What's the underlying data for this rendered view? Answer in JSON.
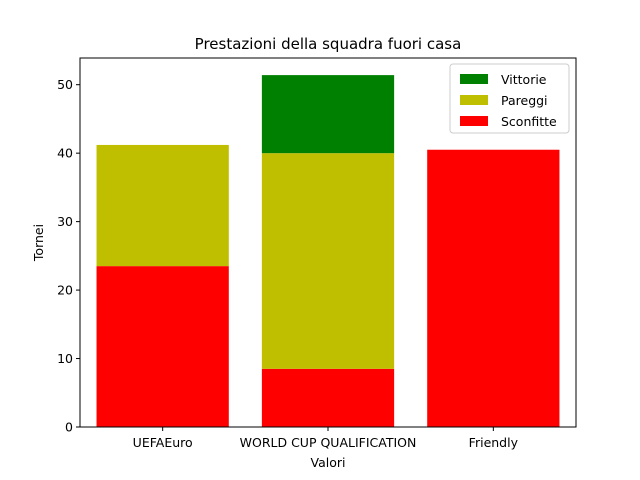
{
  "chart_data": {
    "type": "bar",
    "stacked": true,
    "title": "Prestazioni della squadra fuori casa",
    "xlabel": "Valori",
    "ylabel": "Tornei",
    "categories": [
      "UEFAEuro",
      "WORLD CUP QUALIFICATION",
      "Friendly"
    ],
    "ylim": [
      0,
      53.9
    ],
    "yticks": [
      0,
      10,
      20,
      30,
      40,
      50
    ],
    "grid": false,
    "legend_position": "top-right",
    "series": [
      {
        "name": "Sconfitte",
        "color": "#ff0000",
        "values": [
          23.5,
          8.5,
          40.5
        ]
      },
      {
        "name": "Pareggi",
        "color": "#bfbf00",
        "values": [
          17.7,
          31.5,
          0
        ]
      },
      {
        "name": "Vittorie",
        "color": "#008000",
        "values": [
          0,
          11.4,
          0
        ]
      }
    ],
    "legend_order": [
      "Vittorie",
      "Pareggi",
      "Sconfitte"
    ]
  }
}
